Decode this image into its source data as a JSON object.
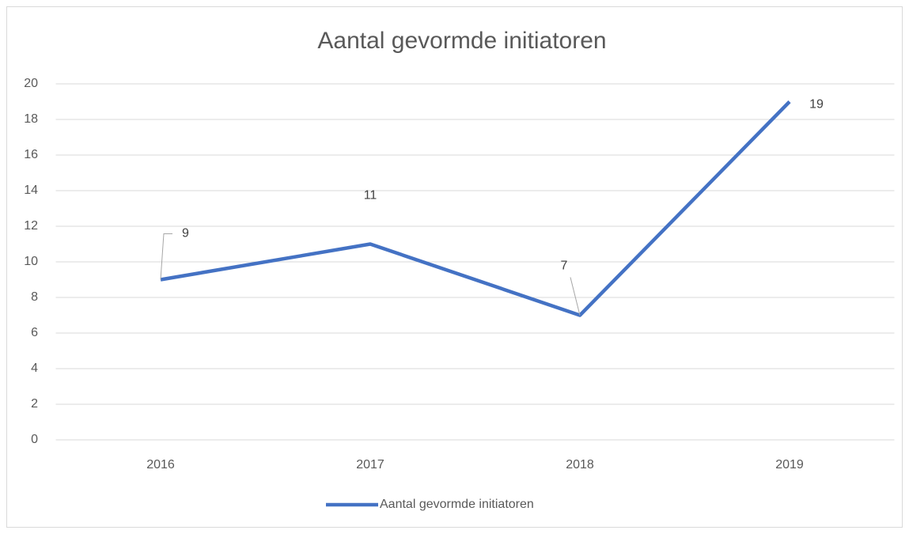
{
  "chart_data": {
    "type": "line",
    "title": "Aantal gevormde initiatoren",
    "categories": [
      "2016",
      "2017",
      "2018",
      "2019"
    ],
    "series": [
      {
        "name": "Aantal gevormde initiatoren",
        "color": "#4472c4",
        "values": [
          9,
          11,
          7,
          19
        ]
      }
    ],
    "ylim": [
      0,
      20
    ],
    "yticks": [
      0,
      2,
      4,
      6,
      8,
      10,
      12,
      14,
      16,
      18,
      20
    ],
    "grid": true,
    "legend": "bottom"
  }
}
